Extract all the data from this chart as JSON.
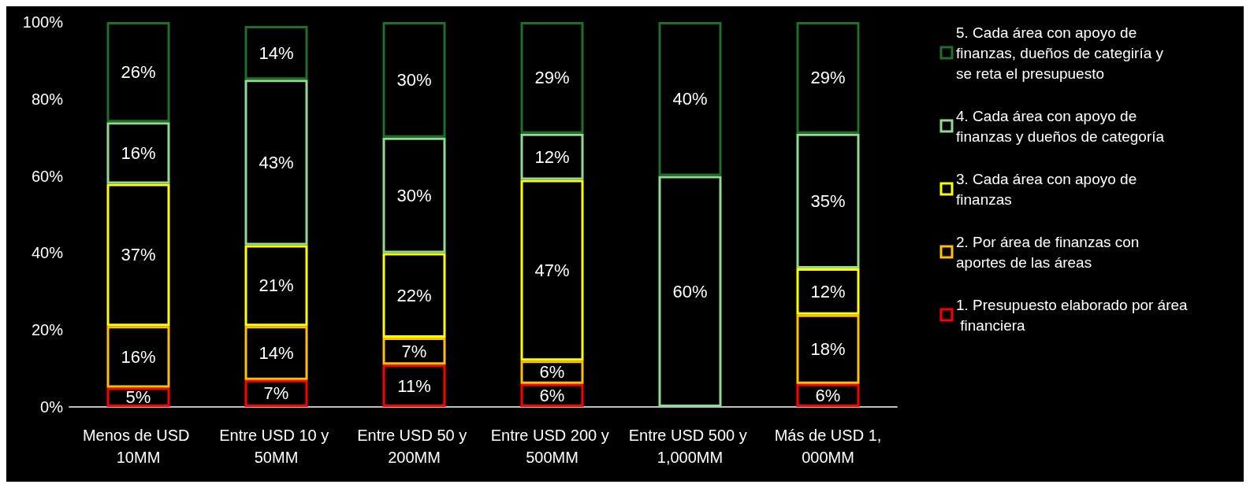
{
  "chart_data": {
    "type": "bar",
    "stacked": true,
    "categories": [
      "Menos de USD 10MM",
      "Entre USD 10 y 50MM",
      "Entre USD 50 y 200MM",
      "Entre USD 200 y 500MM",
      "Entre USD 500 y 1,000MM",
      "Más de USD 1,000MM"
    ],
    "series": [
      {
        "name": "1. Presupuesto elaborado por área financiera",
        "color": "#ff0000",
        "values": [
          5,
          7,
          11,
          6,
          null,
          6
        ],
        "value_labels": [
          "5%",
          "7%",
          "11%",
          "6%",
          null,
          "6%"
        ]
      },
      {
        "name": "2. Por área de finanzas con aportes de las áreas",
        "color": "#ffc000",
        "values": [
          16,
          14,
          7,
          6,
          null,
          18
        ],
        "value_labels": [
          "16%",
          "14%",
          "7%",
          "6%",
          null,
          "18%"
        ]
      },
      {
        "name": "3. Cada área con apoyo de finanzas",
        "color": "#ffff00",
        "values": [
          37,
          21,
          22,
          47,
          null,
          12
        ],
        "value_labels": [
          "37%",
          "21%",
          "22%",
          "47%",
          null,
          "12%"
        ]
      },
      {
        "name": "4. Cada área con apoyo de finanzas y dueños de categoría",
        "color": "#92d992",
        "values": [
          16,
          43,
          30,
          12,
          60,
          35
        ],
        "value_labels": [
          "16%",
          "43%",
          "30%",
          "12%",
          "60%",
          "35%"
        ]
      },
      {
        "name": "5. Cada área con apoyo de finanzas, dueños de categiría y se reta el presupuesto",
        "color": "#1f6e2a",
        "values": [
          26,
          14,
          30,
          29,
          40,
          29
        ],
        "value_labels": [
          "26%",
          "14%",
          "30%",
          "29%",
          "40%",
          "29%"
        ]
      }
    ],
    "ylim": [
      0,
      100
    ],
    "yticks": [
      {
        "value": 0,
        "label": "0%"
      },
      {
        "value": 20,
        "label": "20%"
      },
      {
        "value": 40,
        "label": "40%"
      },
      {
        "value": 60,
        "label": "60%"
      },
      {
        "value": 80,
        "label": "80%"
      },
      {
        "value": 100,
        "label": "100%"
      }
    ],
    "grid": false,
    "legend": "right"
  }
}
